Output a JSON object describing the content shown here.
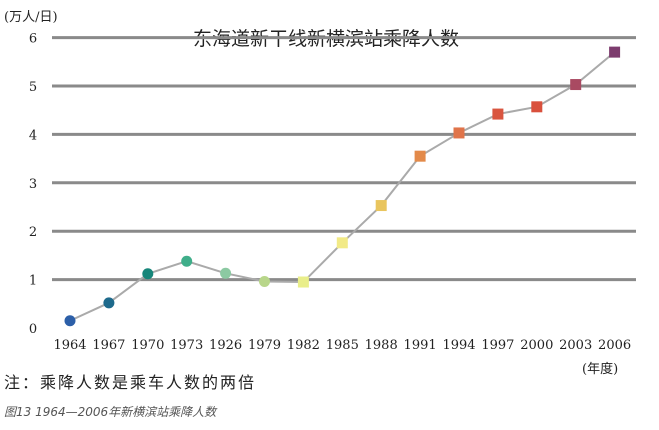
{
  "chart_data": {
    "type": "line",
    "title": "东海道新干线新横滨站乘降人数",
    "yunit": "(万人/日)",
    "xunit": "(年度)",
    "categories": [
      "1964",
      "1967",
      "1970",
      "1973",
      "1926",
      "1979",
      "1982",
      "1985",
      "1988",
      "1991",
      "1994",
      "1997",
      "2000",
      "2003",
      "2006"
    ],
    "series": [
      {
        "values": [
          0.15,
          0.52,
          1.12,
          1.38,
          1.13,
          0.96,
          0.95,
          1.76,
          2.53,
          3.55,
          4.03,
          4.42,
          4.57,
          5.03,
          5.7
        ],
        "colors": [
          "#2c5fa8",
          "#1e6a8c",
          "#17867a",
          "#3fae8a",
          "#8cc9a2",
          "#b8d68a",
          "#e9ee8a",
          "#f2ea86",
          "#e9c55e",
          "#e38a4a",
          "#e0744a",
          "#d9553f",
          "#d9503c",
          "#a94a62",
          "#7d3c6e"
        ]
      }
    ],
    "yticks": [
      0,
      1,
      2,
      3,
      4,
      5,
      6
    ],
    "ylim": [
      0,
      6
    ],
    "grid": true,
    "gridColor": "#8a8a8a",
    "lineColor": "#aaaaaa",
    "note": "注：乘降人数是乘车人数的两倍",
    "caption": "图13  1964—2006年新横滨站乘降人数"
  }
}
